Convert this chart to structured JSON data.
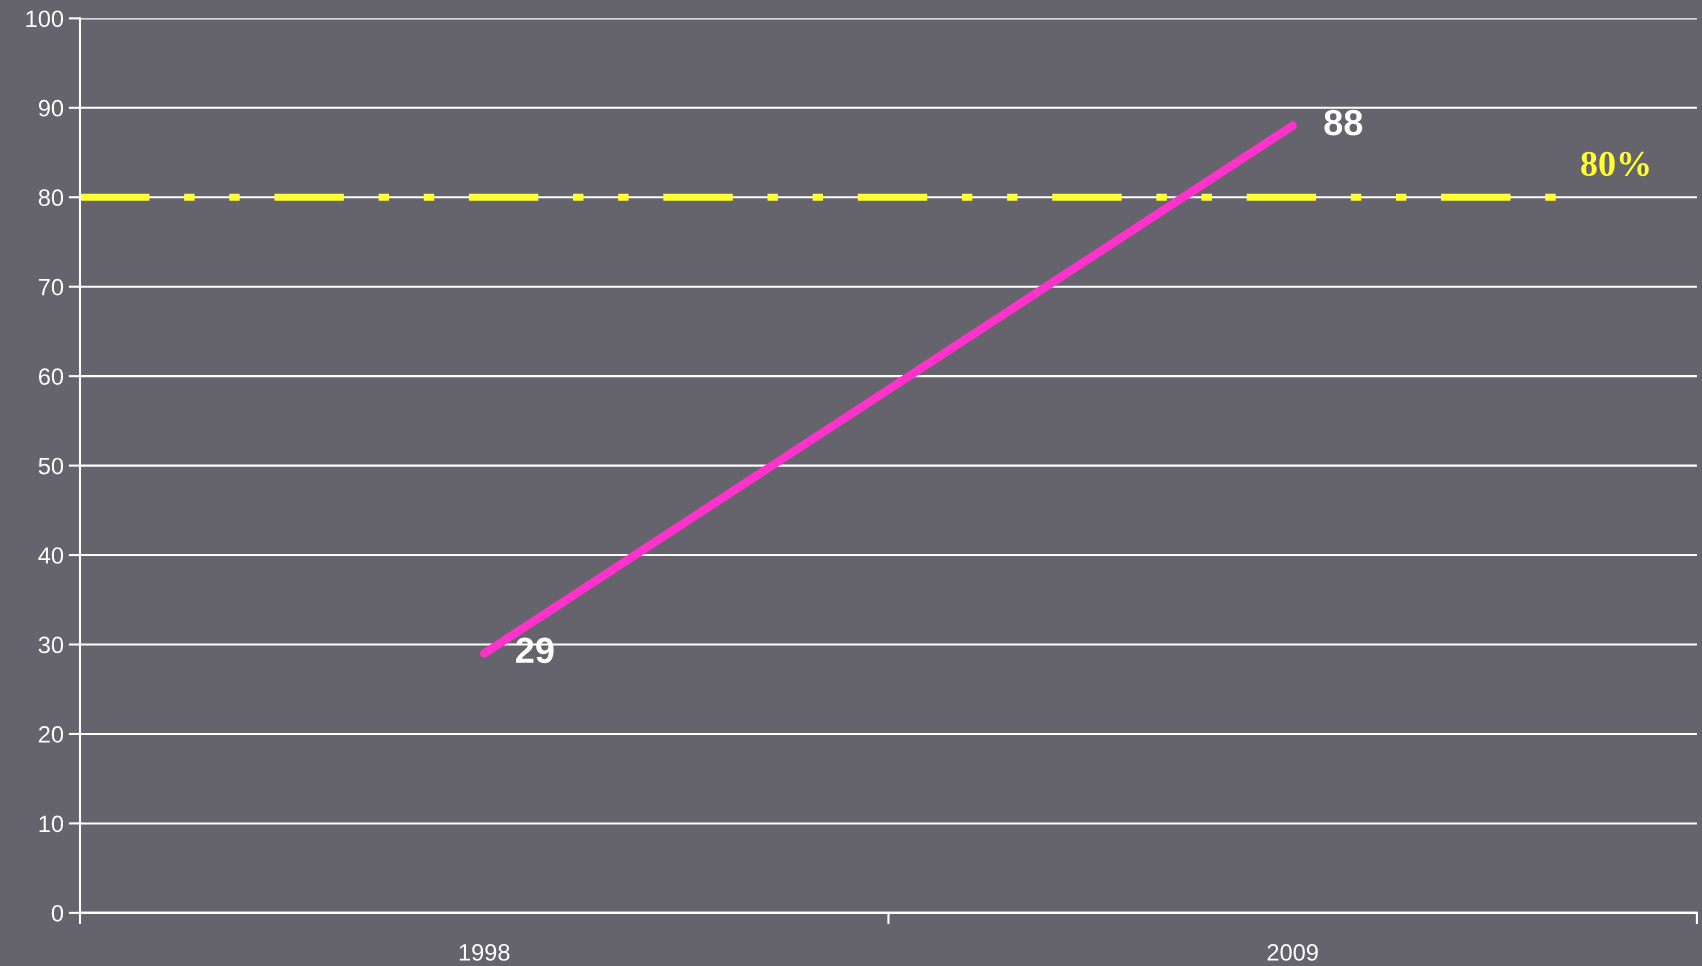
{
  "chart_data": {
    "type": "line",
    "categories": [
      "1998",
      "2009"
    ],
    "series": [
      {
        "color": "#ff33cc",
        "values": [
          29,
          88
        ]
      }
    ],
    "data_labels": true,
    "ylim": [
      0,
      100
    ],
    "yticks": [
      0,
      10,
      20,
      30,
      40,
      50,
      60,
      70,
      80,
      90,
      100
    ],
    "grid": "y",
    "legend": false,
    "marker": "none",
    "line_style": "solid",
    "ref_lines": [
      {
        "axis": "y",
        "value": 80,
        "label": "80%",
        "color": "#ffff33",
        "line_style": "dashed"
      }
    ]
  }
}
